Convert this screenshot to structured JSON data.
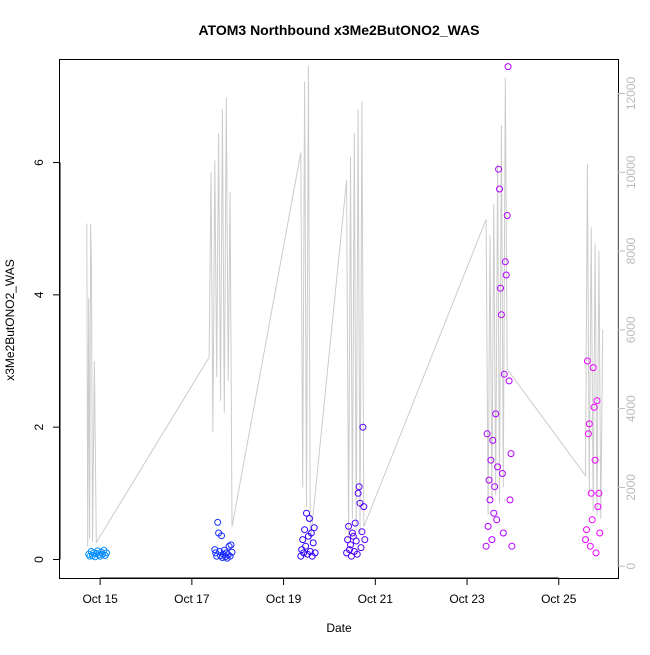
{
  "chart_data": {
    "type": "scatter",
    "title": "ATOM3 Northbound x3Me2ButONO2_WAS",
    "xlabel": "Date",
    "ylabel": "x3Me2ButONO2_WAS",
    "xlim": [
      "2008-10-14T03:00",
      "2008-10-26T07:00"
    ],
    "ylim": [
      -0.28,
      7.55
    ],
    "y2lim": [
      -300,
      12850
    ],
    "x_ticks": [
      {
        "date": "2008-10-15",
        "label": "Oct 15"
      },
      {
        "date": "2008-10-17",
        "label": "Oct 17"
      },
      {
        "date": "2008-10-19",
        "label": "Oct 19"
      },
      {
        "date": "2008-10-21",
        "label": "Oct 21"
      },
      {
        "date": "2008-10-23",
        "label": "Oct 23"
      },
      {
        "date": "2008-10-25",
        "label": "Oct 25"
      }
    ],
    "y_ticks": [
      {
        "value": 0,
        "label": "0"
      },
      {
        "value": 2,
        "label": "2"
      },
      {
        "value": 4,
        "label": "4"
      },
      {
        "value": 6,
        "label": "6"
      }
    ],
    "y2_ticks": [
      {
        "value": 0,
        "label": "0"
      },
      {
        "value": 2000,
        "label": "2000"
      },
      {
        "value": 4000,
        "label": "4000"
      },
      {
        "value": 6000,
        "label": "6000"
      },
      {
        "value": 8000,
        "label": "8000"
      },
      {
        "value": 10000,
        "label": "10000"
      },
      {
        "value": 12000,
        "label": "12000"
      }
    ],
    "grid": false,
    "colors": {
      "secondary_line": "#cccccc",
      "secondary_axis": "#bbbbbb",
      "points_start": "#00aaff",
      "points_mid": "#2200ff",
      "points_end": "#ff00ff"
    },
    "series": [
      {
        "role": "primary",
        "points": [
          [
            "2008-10-14T18:00",
            0.08
          ],
          [
            "2008-10-14T18:40",
            0.05
          ],
          [
            "2008-10-14T19:20",
            0.12
          ],
          [
            "2008-10-14T20:00",
            0.06
          ],
          [
            "2008-10-14T20:40",
            0.1
          ],
          [
            "2008-10-14T21:20",
            0.04
          ],
          [
            "2008-10-14T22:00",
            0.09
          ],
          [
            "2008-10-14T22:40",
            0.13
          ],
          [
            "2008-10-14T23:20",
            0.07
          ],
          [
            "2008-10-15T00:00",
            0.05
          ],
          [
            "2008-10-15T00:40",
            0.11
          ],
          [
            "2008-10-15T01:20",
            0.08
          ],
          [
            "2008-10-15T02:00",
            0.14
          ],
          [
            "2008-10-15T02:40",
            0.06
          ],
          [
            "2008-10-15T03:20",
            0.1
          ],
          [
            "2008-10-17T12:00",
            0.15
          ],
          [
            "2008-10-17T12:30",
            0.1
          ],
          [
            "2008-10-17T13:00",
            0.05
          ],
          [
            "2008-10-17T13:30",
            0.56
          ],
          [
            "2008-10-17T14:00",
            0.4
          ],
          [
            "2008-10-17T14:30",
            0.12
          ],
          [
            "2008-10-17T15:00",
            0.06
          ],
          [
            "2008-10-17T15:30",
            0.36
          ],
          [
            "2008-10-17T16:00",
            0.03
          ],
          [
            "2008-10-17T16:30",
            0.08
          ],
          [
            "2008-10-17T17:00",
            0.14
          ],
          [
            "2008-10-17T17:30",
            0.04
          ],
          [
            "2008-10-17T18:00",
            0.1
          ],
          [
            "2008-10-17T18:30",
            0.02
          ],
          [
            "2008-10-17T19:00",
            0.07
          ],
          [
            "2008-10-17T19:30",
            0.2
          ],
          [
            "2008-10-17T20:00",
            0.05
          ],
          [
            "2008-10-17T20:30",
            0.22
          ],
          [
            "2008-10-17T21:00",
            0.11
          ],
          [
            "2008-10-19T09:00",
            0.05
          ],
          [
            "2008-10-19T09:30",
            0.15
          ],
          [
            "2008-10-19T10:00",
            0.3
          ],
          [
            "2008-10-19T10:30",
            0.1
          ],
          [
            "2008-10-19T11:00",
            0.45
          ],
          [
            "2008-10-19T11:30",
            0.2
          ],
          [
            "2008-10-19T12:00",
            0.7
          ],
          [
            "2008-10-19T12:30",
            0.08
          ],
          [
            "2008-10-19T13:00",
            0.35
          ],
          [
            "2008-10-19T13:30",
            0.62
          ],
          [
            "2008-10-19T14:00",
            0.12
          ],
          [
            "2008-10-19T14:30",
            0.4
          ],
          [
            "2008-10-19T15:00",
            0.05
          ],
          [
            "2008-10-19T15:30",
            0.25
          ],
          [
            "2008-10-19T16:00",
            0.48
          ],
          [
            "2008-10-19T16:30",
            0.1
          ],
          [
            "2008-10-20T09:00",
            0.1
          ],
          [
            "2008-10-20T09:30",
            0.3
          ],
          [
            "2008-10-20T10:00",
            0.5
          ],
          [
            "2008-10-20T10:30",
            0.15
          ],
          [
            "2008-10-20T11:00",
            0.22
          ],
          [
            "2008-10-20T11:30",
            0.05
          ],
          [
            "2008-10-20T12:00",
            0.4
          ],
          [
            "2008-10-20T12:30",
            0.35
          ],
          [
            "2008-10-20T13:00",
            0.12
          ],
          [
            "2008-10-20T13:30",
            0.55
          ],
          [
            "2008-10-20T14:00",
            0.28
          ],
          [
            "2008-10-20T14:30",
            0.08
          ],
          [
            "2008-10-20T15:00",
            1.0
          ],
          [
            "2008-10-20T15:30",
            1.1
          ],
          [
            "2008-10-20T16:00",
            0.85
          ],
          [
            "2008-10-20T16:30",
            0.18
          ],
          [
            "2008-10-20T17:00",
            0.42
          ],
          [
            "2008-10-20T17:30",
            2.0
          ],
          [
            "2008-10-20T18:00",
            0.8
          ],
          [
            "2008-10-20T18:30",
            0.3
          ],
          [
            "2008-10-23T10:00",
            0.2
          ],
          [
            "2008-10-23T10:30",
            1.9
          ],
          [
            "2008-10-23T11:00",
            0.5
          ],
          [
            "2008-10-23T11:30",
            1.2
          ],
          [
            "2008-10-23T12:00",
            0.9
          ],
          [
            "2008-10-23T12:30",
            1.5
          ],
          [
            "2008-10-23T13:00",
            0.3
          ],
          [
            "2008-10-23T13:30",
            1.8
          ],
          [
            "2008-10-23T14:00",
            0.7
          ],
          [
            "2008-10-23T14:30",
            1.1
          ],
          [
            "2008-10-23T15:00",
            2.2
          ],
          [
            "2008-10-23T15:30",
            0.6
          ],
          [
            "2008-10-23T16:00",
            1.4
          ],
          [
            "2008-10-23T16:30",
            5.9
          ],
          [
            "2008-10-23T17:00",
            5.6
          ],
          [
            "2008-10-23T17:30",
            4.1
          ],
          [
            "2008-10-23T18:00",
            3.7
          ],
          [
            "2008-10-23T18:30",
            1.3
          ],
          [
            "2008-10-23T19:00",
            0.4
          ],
          [
            "2008-10-23T19:30",
            2.8
          ],
          [
            "2008-10-23T20:00",
            4.5
          ],
          [
            "2008-10-23T20:30",
            4.3
          ],
          [
            "2008-10-23T21:00",
            5.2
          ],
          [
            "2008-10-23T21:30",
            7.45
          ],
          [
            "2008-10-23T22:00",
            2.7
          ],
          [
            "2008-10-23T22:30",
            0.9
          ],
          [
            "2008-10-23T23:00",
            1.6
          ],
          [
            "2008-10-23T23:30",
            0.2
          ],
          [
            "2008-10-25T14:00",
            0.3
          ],
          [
            "2008-10-25T14:30",
            0.45
          ],
          [
            "2008-10-25T15:00",
            3.0
          ],
          [
            "2008-10-25T15:30",
            1.9
          ],
          [
            "2008-10-25T16:00",
            2.05
          ],
          [
            "2008-10-25T16:30",
            0.2
          ],
          [
            "2008-10-25T17:00",
            1.0
          ],
          [
            "2008-10-25T17:30",
            0.6
          ],
          [
            "2008-10-25T18:00",
            2.9
          ],
          [
            "2008-10-25T18:30",
            2.3
          ],
          [
            "2008-10-25T19:00",
            1.5
          ],
          [
            "2008-10-25T19:30",
            0.1
          ],
          [
            "2008-10-25T20:00",
            2.4
          ],
          [
            "2008-10-25T20:30",
            0.8
          ],
          [
            "2008-10-25T21:00",
            1.0
          ],
          [
            "2008-10-25T21:30",
            0.4
          ]
        ]
      },
      {
        "role": "secondary",
        "axis": "right",
        "points": [
          [
            "2008-10-14T17:00",
            8700
          ],
          [
            "2008-10-14T17:30",
            500
          ],
          [
            "2008-10-14T18:00",
            6800
          ],
          [
            "2008-10-14T18:30",
            700
          ],
          [
            "2008-10-14T19:00",
            8700
          ],
          [
            "2008-10-14T19:30",
            7500
          ],
          [
            "2008-10-14T20:00",
            600
          ],
          [
            "2008-10-14T21:00",
            5200
          ],
          [
            "2008-10-14T22:00",
            600
          ],
          [
            "2008-10-17T09:00",
            5300
          ],
          [
            "2008-10-17T10:00",
            10000
          ],
          [
            "2008-10-17T11:00",
            3400
          ],
          [
            "2008-10-17T12:00",
            10300
          ],
          [
            "2008-10-17T13:00",
            4800
          ],
          [
            "2008-10-17T14:00",
            11000
          ],
          [
            "2008-10-17T15:00",
            4200
          ],
          [
            "2008-10-17T16:00",
            11600
          ],
          [
            "2008-10-17T17:00",
            3900
          ],
          [
            "2008-10-17T18:00",
            11900
          ],
          [
            "2008-10-17T19:00",
            4700
          ],
          [
            "2008-10-17T20:00",
            9500
          ],
          [
            "2008-10-17T21:00",
            1000
          ],
          [
            "2008-10-19T09:00",
            10500
          ],
          [
            "2008-10-19T10:00",
            2000
          ],
          [
            "2008-10-19T11:00",
            12300
          ],
          [
            "2008-10-19T12:00",
            1500
          ],
          [
            "2008-10-19T13:00",
            12700
          ],
          [
            "2008-10-19T14:00",
            600
          ],
          [
            "2008-10-20T09:00",
            9800
          ],
          [
            "2008-10-20T10:00",
            700
          ],
          [
            "2008-10-20T11:00",
            10400
          ],
          [
            "2008-10-20T12:00",
            1200
          ],
          [
            "2008-10-20T13:00",
            11000
          ],
          [
            "2008-10-20T14:00",
            900
          ],
          [
            "2008-10-20T15:00",
            11600
          ],
          [
            "2008-10-20T16:00",
            800
          ],
          [
            "2008-10-20T17:00",
            11800
          ],
          [
            "2008-10-20T18:00",
            1000
          ],
          [
            "2008-10-23T10:00",
            8800
          ],
          [
            "2008-10-23T11:00",
            1300
          ],
          [
            "2008-10-23T12:00",
            8400
          ],
          [
            "2008-10-23T13:00",
            1700
          ],
          [
            "2008-10-23T14:00",
            9200
          ],
          [
            "2008-10-23T15:00",
            1800
          ],
          [
            "2008-10-23T16:00",
            10200
          ],
          [
            "2008-10-23T17:00",
            1600
          ],
          [
            "2008-10-23T18:00",
            11200
          ],
          [
            "2008-10-23T19:00",
            2000
          ],
          [
            "2008-10-23T20:00",
            12400
          ],
          [
            "2008-10-23T21:00",
            5000
          ],
          [
            "2008-10-25T14:00",
            2300
          ],
          [
            "2008-10-25T15:00",
            10200
          ],
          [
            "2008-10-25T16:00",
            1800
          ],
          [
            "2008-10-25T17:00",
            8600
          ],
          [
            "2008-10-25T18:00",
            1400
          ],
          [
            "2008-10-25T19:00",
            8200
          ],
          [
            "2008-10-25T20:00",
            1300
          ],
          [
            "2008-10-25T21:00",
            8000
          ],
          [
            "2008-10-25T22:00",
            1200
          ],
          [
            "2008-10-25T23:00",
            6000
          ]
        ]
      }
    ]
  }
}
